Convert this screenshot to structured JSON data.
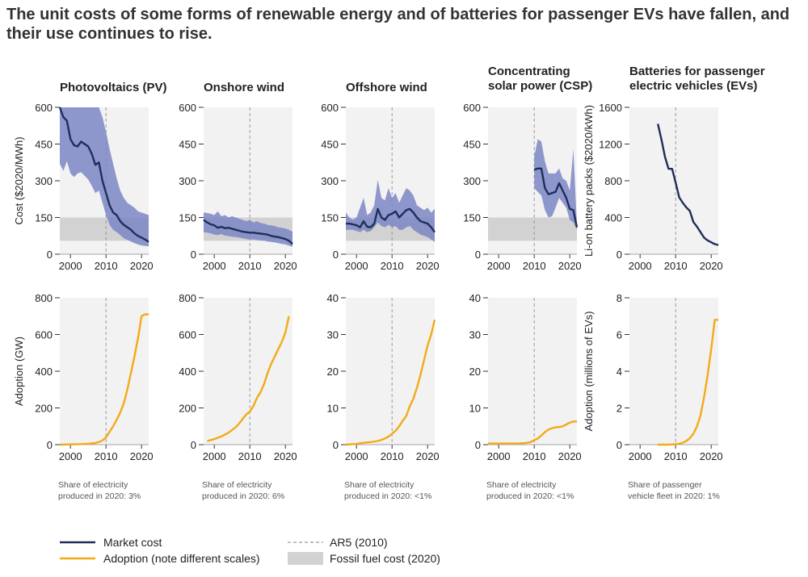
{
  "title": "The unit costs of some forms of renewable energy and of batteries for passenger EVs have fallen, and their use continues to rise.",
  "colors": {
    "market_cost": "#1f2f5a",
    "cost_band": "#7d87c4",
    "adoption": "#f2ab16",
    "fossil": "#d2d2d2",
    "panel_bg": "#f2f2f2",
    "ar5": "#9a9a9a"
  },
  "panels": [
    {
      "title_lines": [
        "Photovoltaics (PV)"
      ],
      "note": [
        "Share of electricity",
        "produced in 2020: 3%"
      ]
    },
    {
      "title_lines": [
        "Onshore wind"
      ],
      "note": [
        "Share of electricity",
        "produced in 2020: 6%"
      ]
    },
    {
      "title_lines": [
        "Offshore wind"
      ],
      "note": [
        "Share of electricity",
        "produced in 2020: <1%"
      ]
    },
    {
      "title_lines": [
        "Concentrating",
        "solar power (CSP)"
      ],
      "note": [
        "Share of electricity",
        "produced in 2020: <1%"
      ]
    },
    {
      "title_lines": [
        "Batteries for passenger",
        "electric vehicles (EVs)"
      ],
      "note": [
        "Share of passenger",
        "vehicle fleet in 2020: 1%"
      ]
    }
  ],
  "legend": {
    "market_cost": "Market cost",
    "adoption": "Adoption (note different scales)",
    "ar5": "AR5 (2010)",
    "fossil": "Fossil fuel cost (2020)"
  },
  "chart_data": [
    {
      "type": "line",
      "panel": "Photovoltaics (PV)",
      "ylabel": "Cost ($2020/MWh)",
      "xlim": [
        1997,
        2022
      ],
      "ylim": [
        0,
        600
      ],
      "xticks": [
        2000,
        2010,
        2020
      ],
      "yticks": [
        0,
        150,
        300,
        450,
        600
      ],
      "ar5_year": 2010,
      "fossil_band": [
        55,
        150
      ],
      "series": [
        {
          "x": [
            1997,
            1998,
            1999,
            2000,
            2001,
            2002,
            2003,
            2004,
            2005,
            2006,
            2007,
            2008,
            2009,
            2010,
            2011,
            2012,
            2013,
            2014,
            2015,
            2016,
            2017,
            2018,
            2019,
            2020,
            2021,
            2022
          ],
          "y": [
            600,
            560,
            545,
            470,
            445,
            440,
            460,
            450,
            440,
            410,
            365,
            375,
            300,
            250,
            200,
            170,
            160,
            135,
            120,
            110,
            100,
            85,
            75,
            68,
            60,
            50
          ],
          "upper": [
            600,
            600,
            600,
            600,
            600,
            600,
            600,
            600,
            600,
            600,
            600,
            600,
            560,
            500,
            430,
            370,
            310,
            260,
            230,
            210,
            200,
            190,
            175,
            170,
            165,
            160
          ],
          "lower": [
            370,
            340,
            380,
            330,
            315,
            330,
            335,
            320,
            305,
            280,
            250,
            260,
            210,
            160,
            120,
            100,
            90,
            78,
            65,
            58,
            52,
            45,
            40,
            36,
            34,
            32
          ]
        }
      ]
    },
    {
      "type": "line",
      "panel": "Onshore wind",
      "ylabel": "",
      "xlim": [
        1997,
        2022
      ],
      "ylim": [
        0,
        600
      ],
      "xticks": [
        2000,
        2010,
        2020
      ],
      "yticks": [
        0,
        150,
        300,
        450,
        600
      ],
      "ar5_year": 2010,
      "fossil_band": [
        55,
        150
      ],
      "series": [
        {
          "x": [
            1997,
            1998,
            1999,
            2000,
            2001,
            2002,
            2003,
            2004,
            2005,
            2006,
            2007,
            2008,
            2009,
            2010,
            2011,
            2012,
            2013,
            2014,
            2015,
            2016,
            2017,
            2018,
            2019,
            2020,
            2021,
            2022
          ],
          "y": [
            140,
            130,
            122,
            118,
            108,
            112,
            106,
            108,
            104,
            100,
            96,
            92,
            90,
            88,
            88,
            86,
            84,
            82,
            80,
            75,
            72,
            70,
            66,
            62,
            55,
            42
          ],
          "upper": [
            170,
            168,
            165,
            160,
            175,
            155,
            160,
            150,
            155,
            150,
            145,
            140,
            135,
            140,
            130,
            135,
            128,
            125,
            120,
            118,
            115,
            110,
            108,
            105,
            100,
            92
          ],
          "lower": [
            90,
            88,
            85,
            80,
            78,
            82,
            76,
            74,
            72,
            70,
            68,
            65,
            62,
            60,
            60,
            58,
            56,
            55,
            52,
            50,
            48,
            45,
            42,
            40,
            35,
            30
          ]
        }
      ]
    },
    {
      "type": "line",
      "panel": "Offshore wind",
      "ylabel": "",
      "xlim": [
        1997,
        2022
      ],
      "ylim": [
        0,
        600
      ],
      "xticks": [
        2000,
        2010,
        2020
      ],
      "yticks": [
        0,
        150,
        300,
        450,
        600
      ],
      "ar5_year": 2010,
      "fossil_band": [
        55,
        150
      ],
      "series": [
        {
          "x": [
            1997,
            1998,
            1999,
            2000,
            2001,
            2002,
            2003,
            2004,
            2005,
            2006,
            2007,
            2008,
            2009,
            2010,
            2011,
            2012,
            2013,
            2014,
            2015,
            2016,
            2017,
            2018,
            2019,
            2020,
            2021,
            2022
          ],
          "y": [
            125,
            125,
            122,
            118,
            110,
            135,
            112,
            110,
            125,
            185,
            150,
            140,
            160,
            165,
            175,
            150,
            165,
            180,
            185,
            170,
            150,
            135,
            130,
            125,
            110,
            90
          ],
          "upper": [
            170,
            150,
            140,
            150,
            190,
            230,
            160,
            170,
            200,
            305,
            230,
            220,
            270,
            230,
            250,
            210,
            240,
            270,
            260,
            240,
            200,
            190,
            180,
            190,
            170,
            185
          ],
          "lower": [
            100,
            100,
            100,
            95,
            90,
            100,
            90,
            95,
            110,
            130,
            115,
            110,
            120,
            110,
            115,
            100,
            100,
            110,
            115,
            100,
            90,
            80,
            75,
            70,
            60,
            50
          ]
        }
      ]
    },
    {
      "type": "line",
      "panel": "Concentrating solar power (CSP)",
      "ylabel": "",
      "xlim": [
        1997,
        2022
      ],
      "ylim": [
        0,
        600
      ],
      "xticks": [
        2000,
        2010,
        2020
      ],
      "yticks": [
        0,
        150,
        300,
        450,
        600
      ],
      "ar5_year": 2010,
      "fossil_band": [
        55,
        150
      ],
      "series": [
        {
          "x": [
            2010,
            2011,
            2012,
            2013,
            2014,
            2015,
            2016,
            2017,
            2018,
            2019,
            2020,
            2021,
            2022
          ],
          "y": [
            345,
            350,
            350,
            270,
            245,
            250,
            255,
            290,
            260,
            230,
            185,
            180,
            110
          ],
          "upper": [
            400,
            470,
            460,
            380,
            330,
            330,
            330,
            350,
            310,
            300,
            260,
            430,
            120
          ],
          "lower": [
            270,
            255,
            240,
            180,
            150,
            155,
            190,
            230,
            210,
            190,
            140,
            130,
            100
          ]
        }
      ]
    },
    {
      "type": "line",
      "panel": "Batteries for passenger electric vehicles (EVs)",
      "ylabel": "Li-on battery packs ($2020/kWh)",
      "xlim": [
        1997,
        2022
      ],
      "ylim": [
        0,
        1600
      ],
      "xticks": [
        2000,
        2010,
        2020
      ],
      "yticks": [
        0,
        400,
        800,
        1200,
        1600
      ],
      "ar5_year": 2010,
      "fossil_band": null,
      "series": [
        {
          "x": [
            2005,
            2006,
            2007,
            2008,
            2009,
            2010,
            2011,
            2012,
            2013,
            2014,
            2015,
            2016,
            2017,
            2018,
            2019,
            2020,
            2021,
            2022
          ],
          "y": [
            1420,
            1250,
            1060,
            930,
            930,
            780,
            620,
            560,
            510,
            470,
            350,
            300,
            240,
            180,
            150,
            130,
            110,
            100
          ]
        }
      ]
    },
    {
      "type": "line",
      "panel": "Photovoltaics (PV)",
      "ylabel": "Adoption (GW)",
      "xlim": [
        1997,
        2022
      ],
      "ylim": [
        0,
        800
      ],
      "xticks": [
        2000,
        2010,
        2020
      ],
      "yticks": [
        0,
        200,
        400,
        600,
        800
      ],
      "ar5_year": 2010,
      "series": [
        {
          "x": [
            1997,
            1999,
            2001,
            2003,
            2005,
            2006,
            2007,
            2008,
            2009,
            2010,
            2011,
            2012,
            2013,
            2014,
            2015,
            2016,
            2017,
            2018,
            2019,
            2020,
            2021,
            2022
          ],
          "y": [
            0,
            1,
            2,
            3,
            5,
            7,
            9,
            15,
            23,
            40,
            70,
            100,
            135,
            175,
            225,
            300,
            390,
            480,
            580,
            700,
            710,
            710
          ]
        }
      ]
    },
    {
      "type": "line",
      "panel": "Onshore wind",
      "ylabel": "",
      "xlim": [
        1997,
        2022
      ],
      "ylim": [
        0,
        800
      ],
      "xticks": [
        2000,
        2010,
        2020
      ],
      "yticks": [
        0,
        200,
        400,
        600,
        800
      ],
      "ar5_year": 2010,
      "series": [
        {
          "x": [
            1998,
            1999,
            2000,
            2001,
            2002,
            2003,
            2004,
            2005,
            2006,
            2007,
            2008,
            2009,
            2010,
            2011,
            2012,
            2013,
            2014,
            2015,
            2016,
            2017,
            2018,
            2019,
            2020,
            2021
          ],
          "y": [
            20,
            25,
            30,
            38,
            45,
            55,
            65,
            80,
            95,
            115,
            140,
            165,
            180,
            210,
            255,
            285,
            330,
            390,
            440,
            480,
            520,
            560,
            610,
            700
          ]
        }
      ]
    },
    {
      "type": "line",
      "panel": "Offshore wind",
      "ylabel": "",
      "xlim": [
        1997,
        2022
      ],
      "ylim": [
        0,
        40
      ],
      "xticks": [
        2000,
        2010,
        2020
      ],
      "yticks": [
        0,
        10,
        20,
        30,
        40
      ],
      "ar5_year": 2010,
      "series": [
        {
          "x": [
            1997,
            2000,
            2002,
            2004,
            2006,
            2007,
            2008,
            2009,
            2010,
            2011,
            2012,
            2013,
            2014,
            2015,
            2016,
            2017,
            2018,
            2019,
            2020,
            2021,
            2022
          ],
          "y": [
            0,
            0.2,
            0.5,
            0.7,
            1,
            1.3,
            1.7,
            2.2,
            3,
            3.8,
            5,
            6.5,
            7.8,
            10.5,
            12.5,
            15.5,
            19,
            23,
            27,
            30,
            34
          ]
        }
      ]
    },
    {
      "type": "line",
      "panel": "Concentrating solar power (CSP)",
      "ylabel": "",
      "xlim": [
        1997,
        2022
      ],
      "ylim": [
        0,
        40
      ],
      "xticks": [
        2000,
        2010,
        2020
      ],
      "yticks": [
        0,
        10,
        20,
        30,
        40
      ],
      "ar5_year": 2010,
      "series": [
        {
          "x": [
            1997,
            2000,
            2005,
            2007,
            2008,
            2009,
            2010,
            2011,
            2012,
            2013,
            2014,
            2015,
            2016,
            2017,
            2018,
            2019,
            2020,
            2021,
            2022
          ],
          "y": [
            0.3,
            0.3,
            0.3,
            0.4,
            0.5,
            0.7,
            1.2,
            1.7,
            2.5,
            3.4,
            4.1,
            4.5,
            4.7,
            4.8,
            5,
            5.5,
            6,
            6.3,
            6.3
          ]
        }
      ]
    },
    {
      "type": "line",
      "panel": "Batteries for passenger electric vehicles (EVs)",
      "ylabel": "Adoption (millions of EVs)",
      "xlim": [
        1997,
        2022
      ],
      "ylim": [
        0,
        8
      ],
      "xticks": [
        2000,
        2010,
        2020
      ],
      "yticks": [
        0,
        2,
        4,
        6,
        8
      ],
      "ar5_year": 2010,
      "series": [
        {
          "x": [
            2005,
            2008,
            2010,
            2011,
            2012,
            2013,
            2014,
            2015,
            2016,
            2017,
            2018,
            2019,
            2020,
            2021,
            2022
          ],
          "y": [
            0,
            0,
            0.02,
            0.05,
            0.1,
            0.2,
            0.35,
            0.6,
            1,
            1.6,
            2.6,
            3.8,
            5.2,
            6.8,
            6.8
          ]
        }
      ]
    }
  ]
}
